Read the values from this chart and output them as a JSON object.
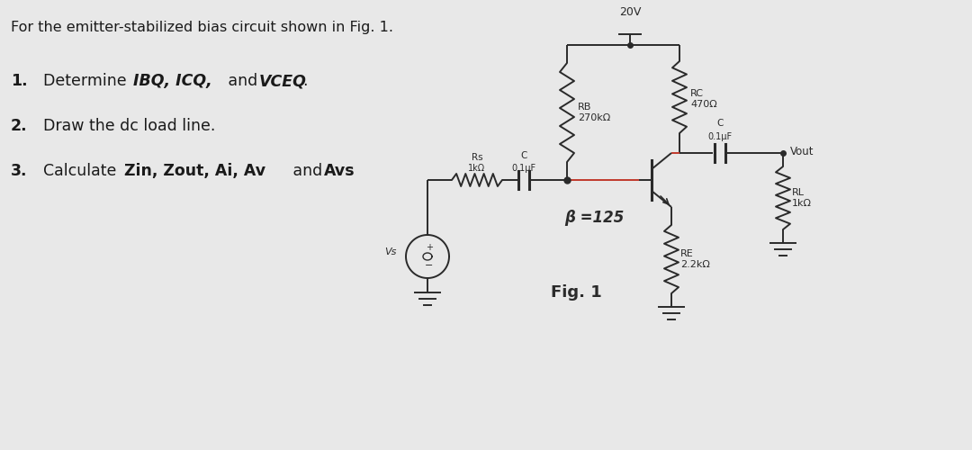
{
  "bg_color": "#e8e8e8",
  "panel_color": "#ffffff",
  "line_color": "#2a2a2a",
  "red_color": "#c0392b",
  "circuit": {
    "vcc_label": "20V",
    "rb_label": "RB\n270kΩ",
    "rc_label": "RC\n470Ω",
    "re_label": "RE\n2.2kΩ",
    "rs_label": "Rs\n1kΩ",
    "c1_label": "0.1μF",
    "c2_label": "0.1μF",
    "rl_label": "RL\n1kΩ",
    "beta_label": "β =125",
    "fig_label": "Fig. 1",
    "vout_label": "Vout",
    "vs_label": "Vs"
  }
}
